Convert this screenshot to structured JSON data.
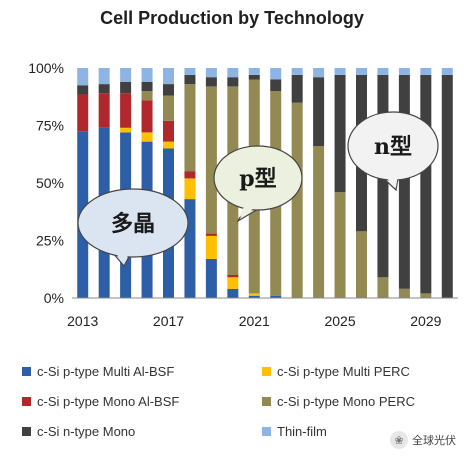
{
  "chart_data": {
    "type": "bar",
    "stacked": true,
    "title": "Cell Production by Technology",
    "x": [
      2013,
      2014,
      2015,
      2016,
      2017,
      2018,
      2019,
      2020,
      2021,
      2022,
      2023,
      2024,
      2025,
      2026,
      2027,
      2028,
      2029,
      2030
    ],
    "x_tick_labels": [
      "2013",
      "2017",
      "2021",
      "2025",
      "2029"
    ],
    "y_tick_labels": [
      "0%",
      "25%",
      "50%",
      "75%",
      "100%"
    ],
    "ylim": [
      0,
      100
    ],
    "grid": false,
    "series": [
      {
        "name": "c-Si p-type Multi Al-BSF",
        "color": "#2e5ea6",
        "values": [
          72.5,
          74,
          72,
          68,
          65,
          43,
          17,
          4,
          1,
          1,
          0,
          0,
          0,
          0,
          0,
          0,
          0,
          0
        ]
      },
      {
        "name": "c-Si p-type Multi PERC",
        "color": "#ffc000",
        "values": [
          0,
          0,
          2,
          4,
          3,
          9,
          10,
          5,
          1,
          0,
          0,
          0,
          0,
          0,
          0,
          0,
          0,
          0
        ]
      },
      {
        "name": "c-Si p-type Mono Al-BSF",
        "color": "#b0282c",
        "values": [
          16,
          15,
          15,
          14,
          9,
          3,
          1,
          1,
          0,
          0,
          0,
          0,
          0,
          0,
          0,
          0,
          0,
          0
        ]
      },
      {
        "name": "c-Si p-type Mono PERC",
        "color": "#938953",
        "values": [
          0,
          0,
          0,
          4,
          11,
          38,
          64,
          82,
          93,
          89,
          85,
          66,
          46,
          29,
          9,
          4,
          2,
          0
        ]
      },
      {
        "name": "c-Si n-type Mono",
        "color": "#404040",
        "values": [
          4,
          4,
          5,
          4,
          5,
          4,
          4,
          4,
          2,
          5,
          12,
          30,
          51,
          68,
          88,
          93,
          95,
          97
        ]
      },
      {
        "name": "Thin-film",
        "color": "#8db4e2",
        "values": [
          7.5,
          7,
          6,
          6,
          7,
          3,
          4,
          4,
          3,
          5,
          3,
          4,
          3,
          3,
          3,
          3,
          3,
          3
        ]
      }
    ],
    "annotations": [
      {
        "text": "多晶",
        "fill": "#dbe5f1"
      },
      {
        "text": "p型",
        "fill": "#ebf1de"
      },
      {
        "text": "n型",
        "fill": "#f2f2f2"
      }
    ],
    "legend": {
      "position": "bottom",
      "columns": 2
    }
  },
  "watermark": {
    "text": "全球光伏"
  }
}
